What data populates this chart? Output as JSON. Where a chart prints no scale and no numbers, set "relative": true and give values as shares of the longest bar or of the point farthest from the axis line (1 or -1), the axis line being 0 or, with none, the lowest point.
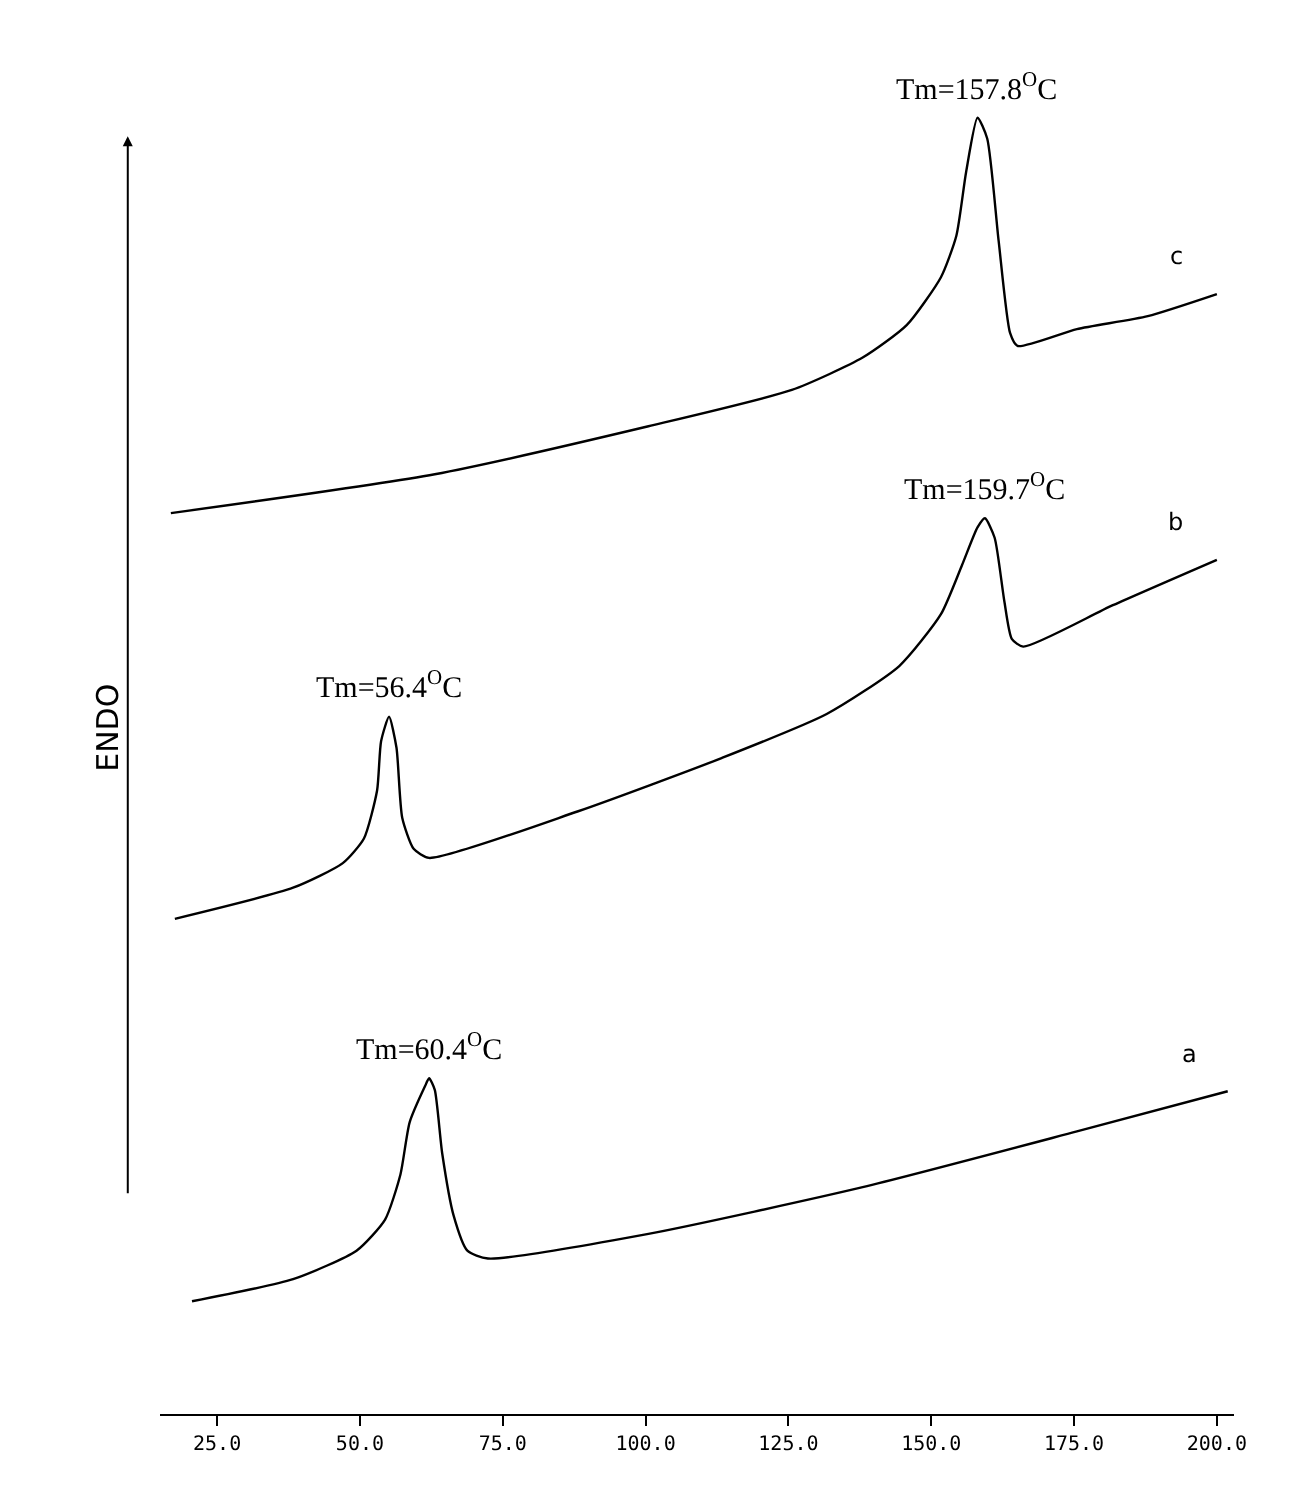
{
  "chart_data": {
    "type": "line",
    "relative": true,
    "ylabel": "ENDO",
    "xlim": [
      15,
      203
    ],
    "xticks": [
      {
        "value": 25,
        "label": "25.0"
      },
      {
        "value": 50,
        "label": "50.0"
      },
      {
        "value": 75,
        "label": "75.0"
      },
      {
        "value": 100,
        "label": "100.0"
      },
      {
        "value": 125,
        "label": "125.0"
      },
      {
        "value": 150,
        "label": "150.0"
      },
      {
        "value": 175,
        "label": "175.0"
      },
      {
        "value": 200,
        "label": "200.0"
      }
    ],
    "legend": false,
    "marker": "none",
    "line_style": "solid",
    "series": [
      {
        "name": "a",
        "color": "#000000",
        "x": [
          20.6,
          38.3,
          49.4,
          54.4,
          57.1,
          58.7,
          61.4,
          62.1,
          63.1,
          64.4,
          66.4,
          68.8,
          72.4,
          100.5,
          138.0,
          175.5,
          201.9
        ],
        "values": [
          0.087,
          0.104,
          0.126,
          0.15,
          0.185,
          0.225,
          0.253,
          0.259,
          0.25,
          0.201,
          0.153,
          0.126,
          0.12,
          0.139,
          0.175,
          0.218,
          0.249
        ]
      },
      {
        "name": "b",
        "color": "#000000",
        "x": [
          17.6,
          38.3,
          47.0,
          50.7,
          53.0,
          53.7,
          55.1,
          56.4,
          57.4,
          59.4,
          62.1,
          88.2,
          113.3,
          131.7,
          144.4,
          151.7,
          155.4,
          158.1,
          159.4,
          161.1,
          162.8,
          164.1,
          166.1,
          181.8,
          200.0
        ],
        "values": [
          0.382,
          0.406,
          0.425,
          0.444,
          0.481,
          0.519,
          0.538,
          0.514,
          0.46,
          0.436,
          0.429,
          0.465,
          0.506,
          0.54,
          0.577,
          0.617,
          0.655,
          0.684,
          0.691,
          0.676,
          0.627,
          0.598,
          0.592,
          0.624,
          0.659
        ]
      },
      {
        "name": "c",
        "color": "#000000",
        "x": [
          16.9,
          63.1,
          100.5,
          125.6,
          138.0,
          145.7,
          151.7,
          154.4,
          156.1,
          158.1,
          159.8,
          161.8,
          163.8,
          165.1,
          175.5,
          187.9,
          200.0
        ],
        "values": [
          0.695,
          0.725,
          0.762,
          0.79,
          0.815,
          0.84,
          0.877,
          0.909,
          0.958,
          1.0,
          0.984,
          0.905,
          0.834,
          0.824,
          0.837,
          0.847,
          0.864
        ]
      }
    ],
    "annotations": [
      {
        "text": "Tm=157.8$^{O}$C",
        "x": 158.1,
        "y": 1.0
      },
      {
        "text": "Tm=159.7$^{O}$C",
        "x": 159.4,
        "y": 0.691
      },
      {
        "text": "Tm=56.4$^{O}$C",
        "x": 55.1,
        "y": 0.538
      },
      {
        "text": "Tm=60.4$^{O}$C",
        "x": 62.1,
        "y": 0.259
      }
    ]
  }
}
